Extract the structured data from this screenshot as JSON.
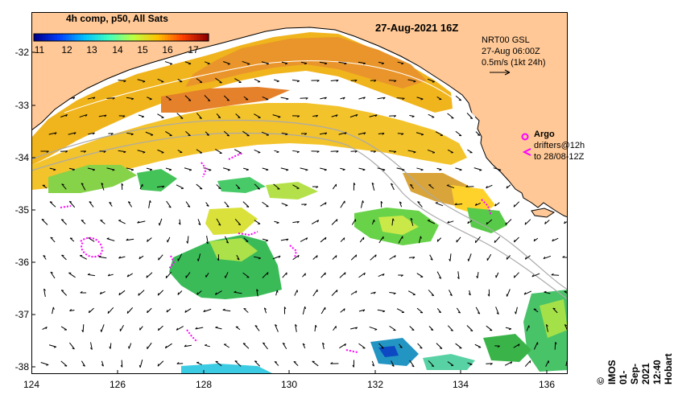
{
  "header": {
    "colorbar_title": "4h comp, p50, All Sats",
    "datetime": "27-Aug-2021 16Z"
  },
  "colorbar": {
    "ticks": [
      "11",
      "12",
      "13",
      "14",
      "15",
      "16",
      "17"
    ],
    "range": [
      10.5,
      17.5
    ],
    "colors": [
      "#00008f",
      "#0040ff",
      "#00c0ff",
      "#40ffbf",
      "#bfff40",
      "#ffc000",
      "#ff4000",
      "#8f0000"
    ]
  },
  "model_info": {
    "line1": "NRT00 GSL",
    "line2": "27-Aug 06:00Z",
    "line3": "0.5m/s (1kt 24h)"
  },
  "legend": {
    "argo_label": "Argo",
    "drifters_line1": "drifters@12h",
    "drifters_line2": "to 28/08-12Z"
  },
  "credit": "©  IMOS 01-Sep-2021 12:40 Hobart",
  "axes": {
    "lat_ticks": [
      "-32",
      "-33",
      "-34",
      "-35",
      "-36",
      "-37",
      "-38"
    ],
    "lon_ticks": [
      "124",
      "126",
      "128",
      "130",
      "132",
      "134",
      "136"
    ],
    "lon_range": [
      124,
      136.5
    ],
    "lat_range": [
      -38.2,
      -31.3
    ]
  },
  "colors": {
    "land": "#ffc896",
    "ocean": "#ffffff",
    "coastline": "#000000",
    "argo": "#ff00ff",
    "bathymetry": "#aaaaaa"
  }
}
